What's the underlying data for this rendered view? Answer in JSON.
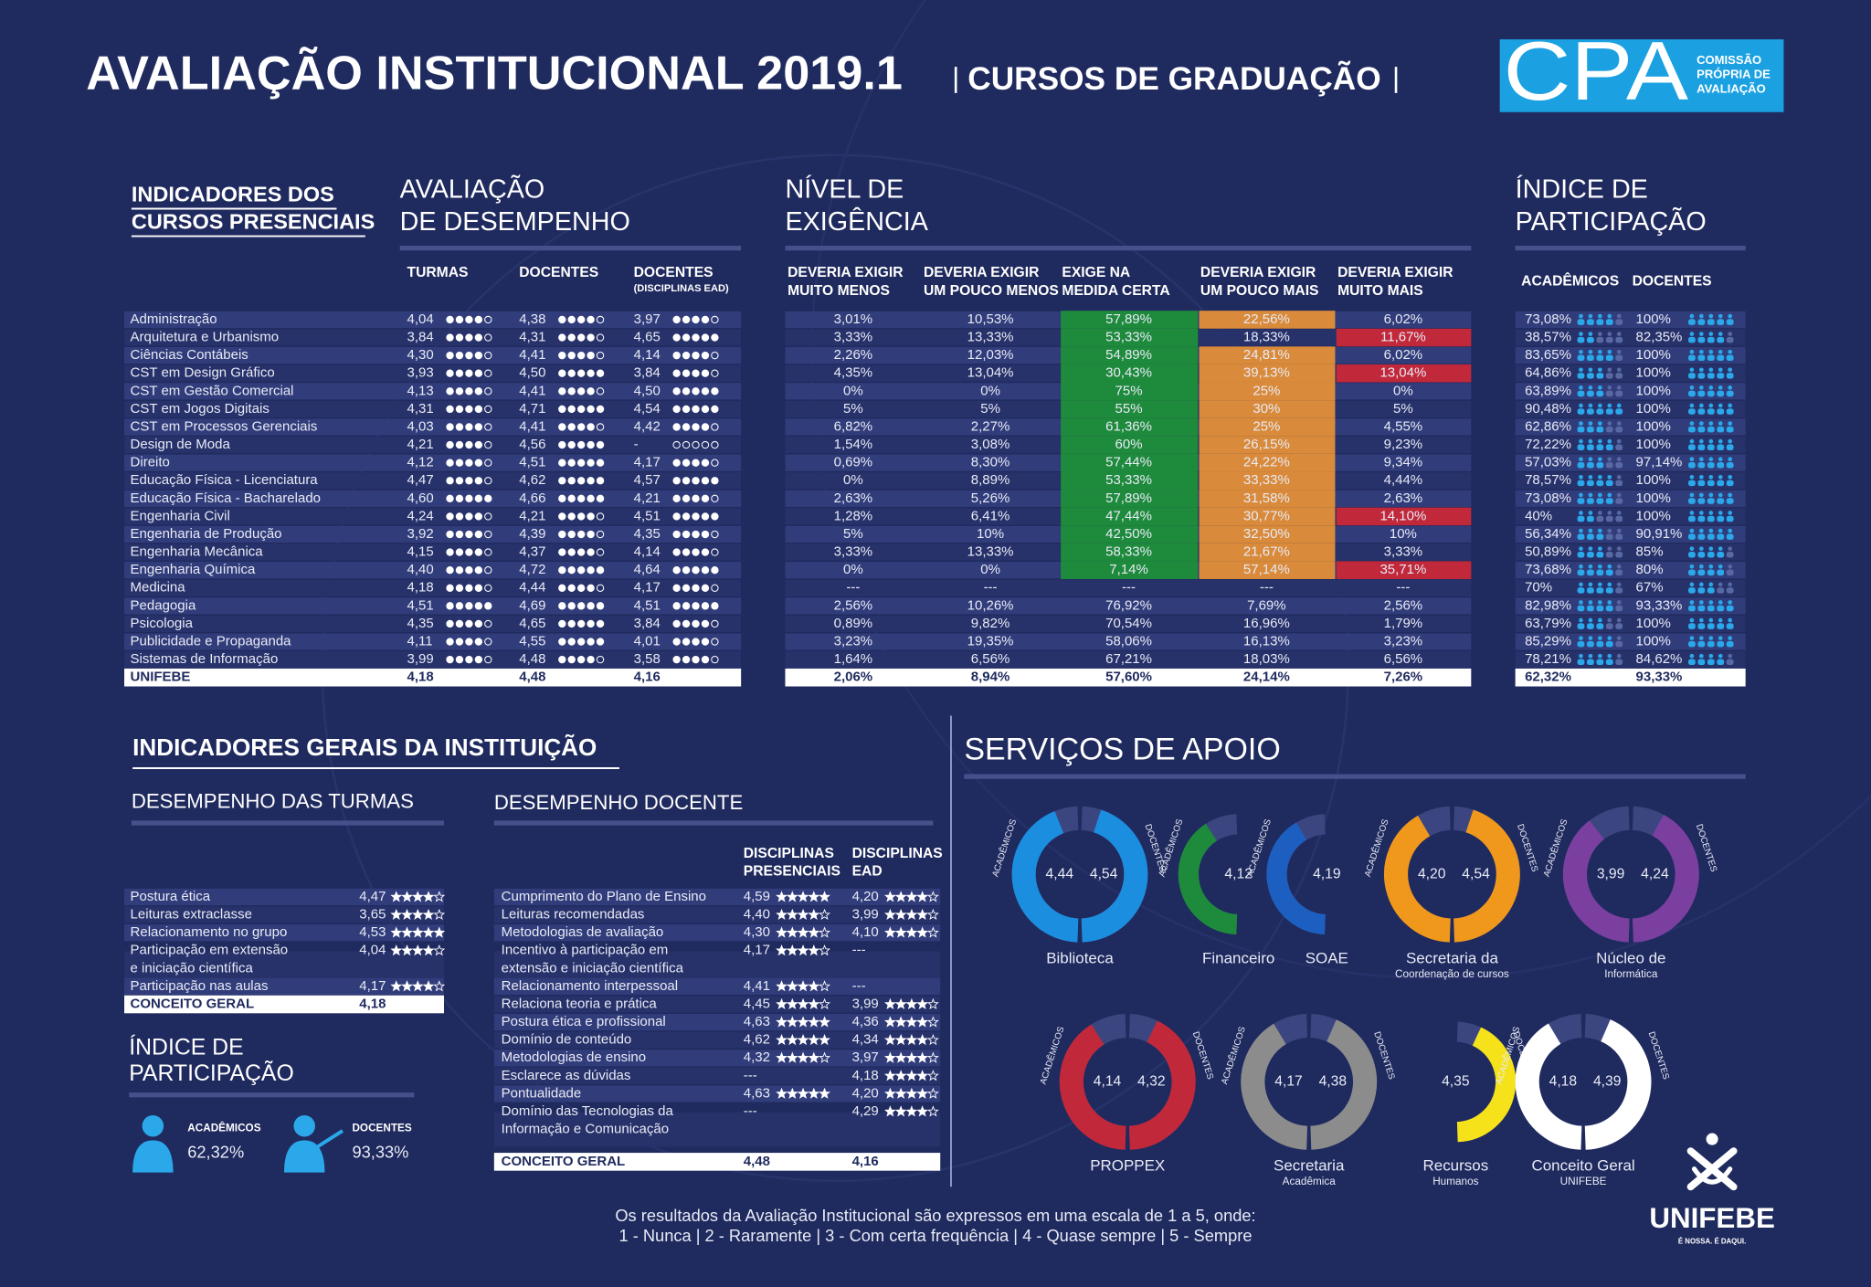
{
  "header": {
    "title": "AVALIAÇÃO INSTITUCIONAL 2019.1",
    "subtitle": "CURSOS DE GRADUAÇÃO",
    "logo": "CPA",
    "logo_lines": [
      "COMISSÃO",
      "PRÓPRIA DE",
      "AVALIAÇÃO"
    ]
  },
  "cursos": {
    "heading": [
      "INDICADORES DOS",
      "CURSOS PRESENCIAIS"
    ],
    "desempenho": {
      "title": [
        "AVALIAÇÃO",
        "DE DESEMPENHO"
      ],
      "columns": [
        "TURMAS",
        "DOCENTES",
        "DOCENTES"
      ],
      "column_note": "(DISCIPLINAS EAD)"
    },
    "exigencia": {
      "title": [
        "NÍVEL DE",
        "EXIGÊNCIA"
      ],
      "columns": [
        [
          "DEVERIA EXIGIR",
          "MUITO MENOS"
        ],
        [
          "DEVERIA EXIGIR",
          "UM POUCO MENOS"
        ],
        [
          "EXIGE NA",
          "MEDIDA CERTA"
        ],
        [
          "DEVERIA EXIGIR",
          "UM POUCO MAIS"
        ],
        [
          "DEVERIA EXIGIR",
          "MUITO MAIS"
        ]
      ]
    },
    "participacao": {
      "title": [
        "ÍNDICE DE",
        "PARTICIPAÇÃO"
      ],
      "columns": [
        "ACADÊMICOS",
        "DOCENTES"
      ]
    },
    "rows": [
      {
        "curso": "Administração",
        "desempenho": [
          "4,04",
          "4,38",
          "3,97"
        ],
        "exigencia": [
          "3,01%",
          "10,53%",
          {
            "text": "57,89%",
            "color": "#1e8a3c"
          },
          {
            "text": "22,56%",
            "color": "#d98a3a"
          },
          "6,02%"
        ],
        "participacao": [
          "73,08%",
          "100%"
        ]
      },
      {
        "curso": "Arquitetura e Urbanismo",
        "desempenho": [
          "3,84",
          "4,31",
          "4,65"
        ],
        "exigencia": [
          "3,33%",
          "13,33%",
          {
            "text": "53,33%",
            "color": "#1e8a3c"
          },
          "18,33%",
          {
            "text": "11,67%",
            "color": "#c1283a"
          }
        ],
        "participacao": [
          "38,57%",
          "82,35%"
        ]
      },
      {
        "curso": "Ciências Contábeis",
        "desempenho": [
          "4,30",
          "4,41",
          "4,14"
        ],
        "exigencia": [
          "2,26%",
          "12,03%",
          {
            "text": "54,89%",
            "color": "#1e8a3c"
          },
          {
            "text": "24,81%",
            "color": "#d98a3a"
          },
          "6,02%"
        ],
        "participacao": [
          "83,65%",
          "100%"
        ]
      },
      {
        "curso": "CST em Design Gráfico",
        "desempenho": [
          "3,93",
          "4,50",
          "3,84"
        ],
        "exigencia": [
          "4,35%",
          "13,04%",
          {
            "text": "30,43%",
            "color": "#1e8a3c"
          },
          {
            "text": "39,13%",
            "color": "#d98a3a"
          },
          {
            "text": "13,04%",
            "color": "#c1283a"
          }
        ],
        "participacao": [
          "64,86%",
          "100%"
        ]
      },
      {
        "curso": "CST em Gestão Comercial",
        "desempenho": [
          "4,13",
          "4,41",
          "4,50"
        ],
        "exigencia": [
          "0%",
          "0%",
          {
            "text": "75%",
            "color": "#1e8a3c"
          },
          {
            "text": "25%",
            "color": "#d98a3a"
          },
          "0%"
        ],
        "participacao": [
          "63,89%",
          "100%"
        ]
      },
      {
        "curso": "CST em Jogos Digitais",
        "desempenho": [
          "4,31",
          "4,71",
          "4,54"
        ],
        "exigencia": [
          "5%",
          "5%",
          {
            "text": "55%",
            "color": "#1e8a3c"
          },
          {
            "text": "30%",
            "color": "#d98a3a"
          },
          "5%"
        ],
        "participacao": [
          "90,48%",
          "100%"
        ]
      },
      {
        "curso": "CST em Processos Gerenciais",
        "desempenho": [
          "4,03",
          "4,41",
          "4,42"
        ],
        "exigencia": [
          "6,82%",
          "2,27%",
          {
            "text": "61,36%",
            "color": "#1e8a3c"
          },
          {
            "text": "25%",
            "color": "#d98a3a"
          },
          "4,55%"
        ],
        "participacao": [
          "62,86%",
          "100%"
        ]
      },
      {
        "curso": "Design de Moda",
        "desempenho": [
          "4,21",
          "4,56",
          "-"
        ],
        "exigencia": [
          "1,54%",
          "3,08%",
          {
            "text": "60%",
            "color": "#1e8a3c"
          },
          {
            "text": "26,15%",
            "color": "#d98a3a"
          },
          "9,23%"
        ],
        "participacao": [
          "72,22%",
          "100%"
        ]
      },
      {
        "curso": "Direito",
        "desempenho": [
          "4,12",
          "4,51",
          "4,17"
        ],
        "exigencia": [
          "0,69%",
          "8,30%",
          {
            "text": "57,44%",
            "color": "#1e8a3c"
          },
          {
            "text": "24,22%",
            "color": "#d98a3a"
          },
          "9,34%"
        ],
        "participacao": [
          "57,03%",
          "97,14%"
        ]
      },
      {
        "curso": "Educação Física - Licenciatura",
        "desempenho": [
          "4,47",
          "4,62",
          "4,57"
        ],
        "exigencia": [
          "0%",
          "8,89%",
          {
            "text": "53,33%",
            "color": "#1e8a3c"
          },
          {
            "text": "33,33%",
            "color": "#d98a3a"
          },
          "4,44%"
        ],
        "participacao": [
          "78,57%",
          "100%"
        ]
      },
      {
        "curso": "Educação Física - Bacharelado",
        "desempenho": [
          "4,60",
          "4,66",
          "4,21"
        ],
        "exigencia": [
          "2,63%",
          "5,26%",
          {
            "text": "57,89%",
            "color": "#1e8a3c"
          },
          {
            "text": "31,58%",
            "color": "#d98a3a"
          },
          "2,63%"
        ],
        "participacao": [
          "73,08%",
          "100%"
        ]
      },
      {
        "curso": "Engenharia Civil",
        "desempenho": [
          "4,24",
          "4,21",
          "4,51"
        ],
        "exigencia": [
          "1,28%",
          "6,41%",
          {
            "text": "47,44%",
            "color": "#1e8a3c"
          },
          {
            "text": "30,77%",
            "color": "#d98a3a"
          },
          {
            "text": "14,10%",
            "color": "#c1283a"
          }
        ],
        "participacao": [
          "40%",
          "100%"
        ]
      },
      {
        "curso": "Engenharia de Produção",
        "desempenho": [
          "3,92",
          "4,39",
          "4,35"
        ],
        "exigencia": [
          "5%",
          "10%",
          {
            "text": "42,50%",
            "color": "#1e8a3c"
          },
          {
            "text": "32,50%",
            "color": "#d98a3a"
          },
          "10%"
        ],
        "participacao": [
          "56,34%",
          "90,91%"
        ]
      },
      {
        "curso": "Engenharia Mecânica",
        "desempenho": [
          "4,15",
          "4,37",
          "4,14"
        ],
        "exigencia": [
          "3,33%",
          "13,33%",
          {
            "text": "58,33%",
            "color": "#1e8a3c"
          },
          {
            "text": "21,67%",
            "color": "#d98a3a"
          },
          "3,33%"
        ],
        "participacao": [
          "50,89%",
          "85%"
        ]
      },
      {
        "curso": "Engenharia Química",
        "desempenho": [
          "4,40",
          "4,72",
          "4,64"
        ],
        "exigencia": [
          "0%",
          "0%",
          {
            "text": "7,14%",
            "color": "#1e8a3c"
          },
          {
            "text": "57,14%",
            "color": "#d98a3a"
          },
          {
            "text": "35,71%",
            "color": "#c1283a"
          }
        ],
        "participacao": [
          "73,68%",
          "80%"
        ]
      },
      {
        "curso": "Medicina",
        "desempenho": [
          "4,18",
          "4,44",
          "4,17"
        ],
        "exigencia": [
          "---",
          "---",
          "---",
          "---",
          "---"
        ],
        "participacao": [
          "70%",
          "67%"
        ]
      },
      {
        "curso": "Pedagogia",
        "desempenho": [
          "4,51",
          "4,69",
          "4,51"
        ],
        "exigencia": [
          "2,56%",
          "10,26%",
          "76,92%",
          "7,69%",
          "2,56%"
        ],
        "participacao": [
          "82,98%",
          "93,33%"
        ]
      },
      {
        "curso": "Psicologia",
        "desempenho": [
          "4,35",
          "4,65",
          "3,84"
        ],
        "exigencia": [
          "0,89%",
          "9,82%",
          "70,54%",
          "16,96%",
          "1,79%"
        ],
        "participacao": [
          "63,79%",
          "100%"
        ]
      },
      {
        "curso": "Publicidade e Propaganda",
        "desempenho": [
          "4,11",
          "4,55",
          "4,01"
        ],
        "exigencia": [
          "3,23%",
          "19,35%",
          "58,06%",
          "16,13%",
          "3,23%"
        ],
        "participacao": [
          "85,29%",
          "100%"
        ]
      },
      {
        "curso": "Sistemas de Informação",
        "desempenho": [
          "3,99",
          "4,48",
          "3,58"
        ],
        "exigencia": [
          "1,64%",
          "6,56%",
          "67,21%",
          "18,03%",
          "6,56%"
        ],
        "participacao": [
          "78,21%",
          "84,62%"
        ]
      }
    ],
    "total": {
      "curso": "UNIFEBE",
      "desempenho": [
        "4,18",
        "4,48",
        "4,16"
      ],
      "exigencia": [
        "2,06%",
        "8,94%",
        "57,60%",
        "24,14%",
        "7,26%"
      ],
      "participacao": [
        "62,32%",
        "93,33%"
      ]
    }
  },
  "gerais": {
    "heading": "INDICADORES GERAIS DA INSTITUIÇÃO",
    "turmas": {
      "title": "DESEMPENHO DAS TURMAS",
      "rows": [
        {
          "label": [
            "Postura ética"
          ],
          "value": "4,47"
        },
        {
          "label": [
            "Leituras extraclasse"
          ],
          "value": "3,65"
        },
        {
          "label": [
            "Relacionamento no grupo"
          ],
          "value": "4,53"
        },
        {
          "label": [
            "Participação em extensão",
            "e iniciação científica"
          ],
          "value": "4,04"
        },
        {
          "label": [
            "Participação nas aulas"
          ],
          "value": "4,17"
        }
      ],
      "total": {
        "label": "CONCEITO GERAL",
        "value": "4,18"
      }
    },
    "participacao": {
      "title": [
        "ÍNDICE DE",
        "PARTICIPAÇÃO"
      ],
      "items": [
        {
          "label": "ACADÊMICOS",
          "value": "62,32%"
        },
        {
          "label": "DOCENTES",
          "value": "93,33%"
        }
      ]
    },
    "docente": {
      "title": "DESEMPENHO DOCENTE",
      "columns": [
        [
          "DISCIPLINAS",
          "PRESENCIAIS"
        ],
        [
          "DISCIPLINAS",
          "EAD"
        ]
      ],
      "rows": [
        {
          "label": [
            "Cumprimento do Plano de Ensino"
          ],
          "values": [
            "4,59",
            "4,20"
          ]
        },
        {
          "label": [
            "Leituras recomendadas"
          ],
          "values": [
            "4,40",
            "3,99"
          ]
        },
        {
          "label": [
            "Metodologias de avaliação"
          ],
          "values": [
            "4,30",
            "4,10"
          ]
        },
        {
          "label": [
            "Incentivo à participação em",
            "extensão e iniciação científica"
          ],
          "values": [
            "4,17",
            "---"
          ]
        },
        {
          "label": [
            "Relacionamento interpessoal"
          ],
          "values": [
            "4,41",
            "---"
          ]
        },
        {
          "label": [
            "Relaciona teoria e prática"
          ],
          "values": [
            "4,45",
            "3,99"
          ]
        },
        {
          "label": [
            "Postura ética e profissional"
          ],
          "values": [
            "4,63",
            "4,36"
          ]
        },
        {
          "label": [
            "Domínio de conteúdo"
          ],
          "values": [
            "4,62",
            "4,34"
          ]
        },
        {
          "label": [
            "Metodologias de ensino"
          ],
          "values": [
            "4,32",
            "3,97"
          ]
        },
        {
          "label": [
            "Esclarece as dúvidas"
          ],
          "values": [
            "---",
            "4,18"
          ]
        },
        {
          "label": [
            "Pontualidade"
          ],
          "values": [
            "4,63",
            "4,20"
          ]
        },
        {
          "label": [
            "Domínio das Tecnologias da",
            "Informação e Comunicação"
          ],
          "values": [
            "---",
            "4,29"
          ]
        }
      ],
      "total": {
        "label": "CONCEITO GERAL",
        "values": [
          "4,48",
          "4,16"
        ]
      }
    }
  },
  "servicos": {
    "title": "SERVIÇOS DE APOIO",
    "sides": [
      "ACADÊMICOS",
      "DOCENTES"
    ],
    "range": [
      0,
      5
    ],
    "items": [
      {
        "name": "Biblioteca",
        "values": [
          4.44,
          4.54
        ],
        "value_labels": [
          "4,44",
          "4,54"
        ],
        "color": "#1b8ee0"
      },
      {
        "name": "Financeiro",
        "values": [
          4.12,
          null
        ],
        "value_labels": [
          "4,12",
          null
        ],
        "color": "#1e8a3c"
      },
      {
        "name": "SOAE",
        "values": [
          4.19,
          null
        ],
        "value_labels": [
          "4,19",
          null
        ],
        "color": "#1d5fc0"
      },
      {
        "name": "Secretaria da",
        "sub": "Coordenação de cursos",
        "values": [
          4.2,
          4.54
        ],
        "value_labels": [
          "4,20",
          "4,54"
        ],
        "color": "#f0981c"
      },
      {
        "name": "Núcleo de",
        "sub": "Informática",
        "values": [
          3.99,
          4.24
        ],
        "value_labels": [
          "3,99",
          "4,24"
        ],
        "color": "#7b3fa0"
      },
      {
        "name": "PROPPEX",
        "values": [
          4.14,
          4.32
        ],
        "value_labels": [
          "4,14",
          "4,32"
        ],
        "color": "#c1283a"
      },
      {
        "name": "Secretaria",
        "sub": "Acadêmica",
        "values": [
          4.17,
          4.38
        ],
        "value_labels": [
          "4,17",
          "4,38"
        ],
        "color": "#8c8c8c"
      },
      {
        "name": "Recursos",
        "sub": "Humanos",
        "values": [
          null,
          4.35
        ],
        "value_labels": [
          null,
          "4,35"
        ],
        "color": "#f5e21a"
      },
      {
        "name": "Conceito Geral",
        "sub": "UNIFEBE",
        "values": [
          4.18,
          4.39
        ],
        "value_labels": [
          "4,18",
          "4,39"
        ],
        "color": "#ffffff"
      }
    ]
  },
  "footer": {
    "lines": [
      "Os resultados da Avaliação Institucional são expressos em uma escala de 1 a 5, onde:",
      "1 - Nunca | 2 - Raramente | 3 - Com certa frequência | 4 - Quase sempre | 5 - Sempre"
    ]
  },
  "brand": {
    "name": "UNIFEBE",
    "tagline": "É NOSSA. É DAQUI."
  }
}
